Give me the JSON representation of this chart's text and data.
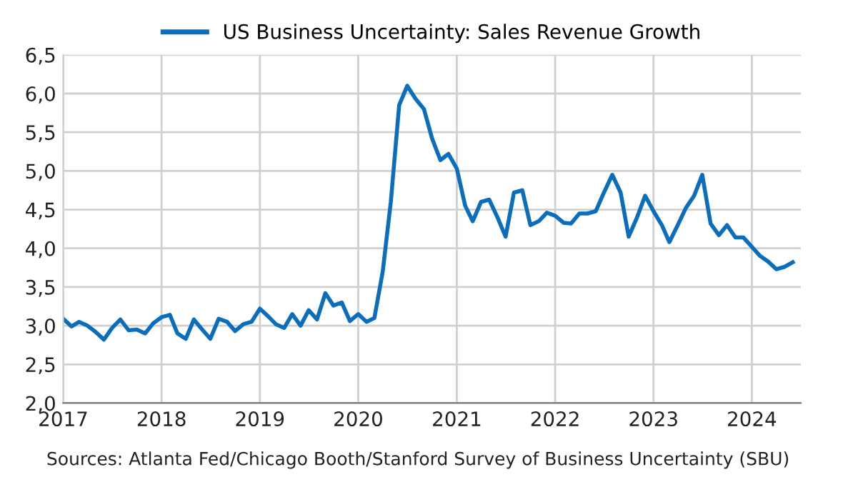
{
  "chart_data": {
    "type": "line",
    "x": [
      "2017-01",
      "2017-02",
      "2017-03",
      "2017-04",
      "2017-05",
      "2017-06",
      "2017-07",
      "2017-08",
      "2017-09",
      "2017-10",
      "2017-11",
      "2017-12",
      "2018-01",
      "2018-02",
      "2018-03",
      "2018-04",
      "2018-05",
      "2018-06",
      "2018-07",
      "2018-08",
      "2018-09",
      "2018-10",
      "2018-11",
      "2018-12",
      "2019-01",
      "2019-02",
      "2019-03",
      "2019-04",
      "2019-05",
      "2019-06",
      "2019-07",
      "2019-08",
      "2019-09",
      "2019-10",
      "2019-11",
      "2019-12",
      "2020-01",
      "2020-02",
      "2020-03",
      "2020-04",
      "2020-05",
      "2020-06",
      "2020-07",
      "2020-08",
      "2020-09",
      "2020-10",
      "2020-11",
      "2020-12",
      "2021-01",
      "2021-02",
      "2021-03",
      "2021-04",
      "2021-05",
      "2021-06",
      "2021-07",
      "2021-08",
      "2021-09",
      "2021-10",
      "2021-11",
      "2021-12",
      "2022-01",
      "2022-02",
      "2022-03",
      "2022-04",
      "2022-05",
      "2022-06",
      "2022-07",
      "2022-08",
      "2022-09",
      "2022-10",
      "2022-11",
      "2022-12",
      "2023-01",
      "2023-02",
      "2023-03",
      "2023-04",
      "2023-05",
      "2023-06",
      "2023-07",
      "2023-08",
      "2023-09",
      "2023-10",
      "2023-11",
      "2023-12",
      "2024-01",
      "2024-02",
      "2024-03",
      "2024-04",
      "2024-05",
      "2024-06"
    ],
    "series": [
      {
        "name": "US Business Uncertainty: Sales Revenue Growth",
        "color": "#0a6ebd",
        "values": [
          3.09,
          2.99,
          3.05,
          3.0,
          2.92,
          2.82,
          2.97,
          3.08,
          2.94,
          2.95,
          2.9,
          3.03,
          3.11,
          3.14,
          2.9,
          2.83,
          3.08,
          2.95,
          2.83,
          3.09,
          3.05,
          2.93,
          3.02,
          3.05,
          3.22,
          3.12,
          3.02,
          2.97,
          3.15,
          3.0,
          3.2,
          3.08,
          3.42,
          3.26,
          3.3,
          3.06,
          3.15,
          3.05,
          3.1,
          3.7,
          4.6,
          5.85,
          6.1,
          5.93,
          5.8,
          5.42,
          5.14,
          5.22,
          5.03,
          4.55,
          4.35,
          4.6,
          4.63,
          4.4,
          4.15,
          4.72,
          4.75,
          4.3,
          4.35,
          4.46,
          4.42,
          4.33,
          4.32,
          4.45,
          4.45,
          4.48,
          4.72,
          4.95,
          4.72,
          4.15,
          4.4,
          4.68,
          4.48,
          4.3,
          4.08,
          4.3,
          4.52,
          4.68,
          4.95,
          4.32,
          4.17,
          4.3,
          4.14,
          4.14,
          4.02,
          3.9,
          3.83,
          3.73,
          3.76,
          3.82
        ]
      }
    ],
    "xlim": [
      "2017-01",
      "2024-07"
    ],
    "xticks": [
      {
        "value": "2017-01",
        "label": "2017"
      },
      {
        "value": "2018-01",
        "label": "2018"
      },
      {
        "value": "2019-01",
        "label": "2019"
      },
      {
        "value": "2020-01",
        "label": "2020"
      },
      {
        "value": "2021-01",
        "label": "2021"
      },
      {
        "value": "2022-01",
        "label": "2022"
      },
      {
        "value": "2023-01",
        "label": "2023"
      },
      {
        "value": "2024-01",
        "label": "2024"
      }
    ],
    "ylim": [
      2.0,
      6.5
    ],
    "yticks": [
      {
        "value": 2.0,
        "label": "2,0"
      },
      {
        "value": 2.5,
        "label": "2,5"
      },
      {
        "value": 3.0,
        "label": "3,0"
      },
      {
        "value": 3.5,
        "label": "3,5"
      },
      {
        "value": 4.0,
        "label": "4,0"
      },
      {
        "value": 4.5,
        "label": "4,5"
      },
      {
        "value": 5.0,
        "label": "5,0"
      },
      {
        "value": 5.5,
        "label": "5,5"
      },
      {
        "value": 6.0,
        "label": "6,0"
      },
      {
        "value": 6.5,
        "label": "6,5"
      }
    ],
    "grid": true,
    "legend": "top",
    "marker": "none",
    "line_style": "solid",
    "annotations": [
      "Sources: Atlanta Fed/Chicago Booth/Stanford Survey of Business Uncertainty (SBU)"
    ]
  }
}
